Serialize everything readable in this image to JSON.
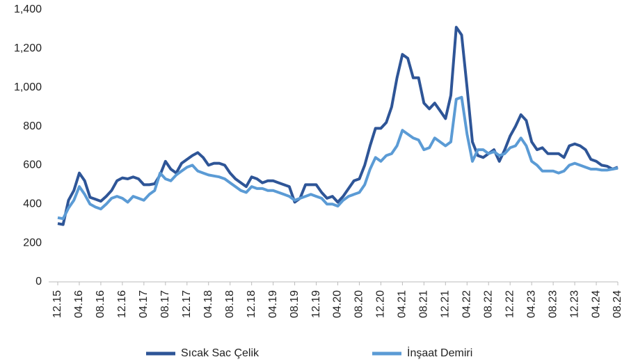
{
  "chart_data": {
    "type": "line",
    "categories": [
      "12.15",
      null,
      null,
      null,
      "04.16",
      null,
      null,
      null,
      "08.16",
      null,
      null,
      null,
      "12.16",
      null,
      null,
      null,
      "04.17",
      null,
      null,
      null,
      "08.17",
      null,
      null,
      null,
      "12.17",
      null,
      null,
      null,
      "04.18",
      null,
      null,
      null,
      "08.18",
      null,
      null,
      null,
      "12.18",
      null,
      null,
      null,
      "04.19",
      null,
      null,
      null,
      "08.19",
      null,
      null,
      null,
      "12.19",
      null,
      null,
      null,
      "04.20",
      null,
      null,
      null,
      "08.20",
      null,
      null,
      null,
      "12.20",
      null,
      null,
      null,
      "04.21",
      null,
      null,
      null,
      "08.21",
      null,
      null,
      null,
      "12.21",
      null,
      null,
      null,
      "04.22",
      null,
      null,
      null,
      "08.22",
      null,
      null,
      null,
      "12.22",
      null,
      null,
      null,
      "04.23",
      null,
      null,
      null,
      "08.23",
      null,
      null,
      null,
      "12.23",
      null,
      null,
      null,
      "04.24",
      null,
      null,
      null,
      "08.24"
    ],
    "series": [
      {
        "name": "Sıcak Sac Çelik",
        "color": "#2e5597",
        "values": [
          300,
          295,
          420,
          470,
          560,
          520,
          435,
          425,
          415,
          440,
          470,
          520,
          535,
          530,
          540,
          530,
          500,
          500,
          505,
          550,
          620,
          580,
          560,
          610,
          630,
          650,
          665,
          640,
          600,
          610,
          610,
          600,
          560,
          530,
          510,
          490,
          540,
          530,
          510,
          520,
          520,
          510,
          500,
          490,
          410,
          430,
          500,
          500,
          500,
          460,
          430,
          440,
          410,
          440,
          480,
          520,
          530,
          600,
          700,
          790,
          790,
          820,
          900,
          1050,
          1170,
          1150,
          1050,
          1050,
          920,
          890,
          920,
          880,
          840,
          960,
          1310,
          1270,
          1000,
          720,
          650,
          640,
          660,
          680,
          620,
          680,
          750,
          800,
          860,
          830,
          720,
          680,
          690,
          660,
          660,
          660,
          640,
          700,
          710,
          700,
          680,
          630,
          620,
          600,
          595,
          580,
          590
        ]
      },
      {
        "name": "İnşaat Demiri",
        "color": "#5b9bd5",
        "values": [
          330,
          325,
          380,
          420,
          490,
          450,
          400,
          385,
          375,
          400,
          430,
          440,
          430,
          410,
          440,
          430,
          420,
          450,
          470,
          560,
          530,
          520,
          550,
          570,
          590,
          600,
          570,
          560,
          550,
          545,
          540,
          530,
          510,
          490,
          470,
          460,
          490,
          480,
          480,
          470,
          470,
          460,
          450,
          440,
          420,
          430,
          440,
          450,
          440,
          430,
          400,
          400,
          390,
          420,
          440,
          450,
          460,
          500,
          580,
          640,
          620,
          650,
          660,
          700,
          780,
          760,
          740,
          730,
          680,
          690,
          740,
          720,
          700,
          720,
          940,
          950,
          760,
          620,
          680,
          680,
          660,
          670,
          650,
          660,
          690,
          700,
          740,
          700,
          620,
          600,
          570,
          570,
          570,
          560,
          570,
          600,
          610,
          600,
          590,
          580,
          580,
          575,
          575,
          580,
          585
        ]
      }
    ],
    "ylim": [
      0,
      1400
    ],
    "yticks": [
      0,
      200,
      400,
      600,
      800,
      {
        "value": 1000,
        "label": "1,000"
      },
      {
        "value": 1200,
        "label": "1,200"
      },
      {
        "value": 1400,
        "label": "1,400"
      }
    ],
    "grid": false
  }
}
